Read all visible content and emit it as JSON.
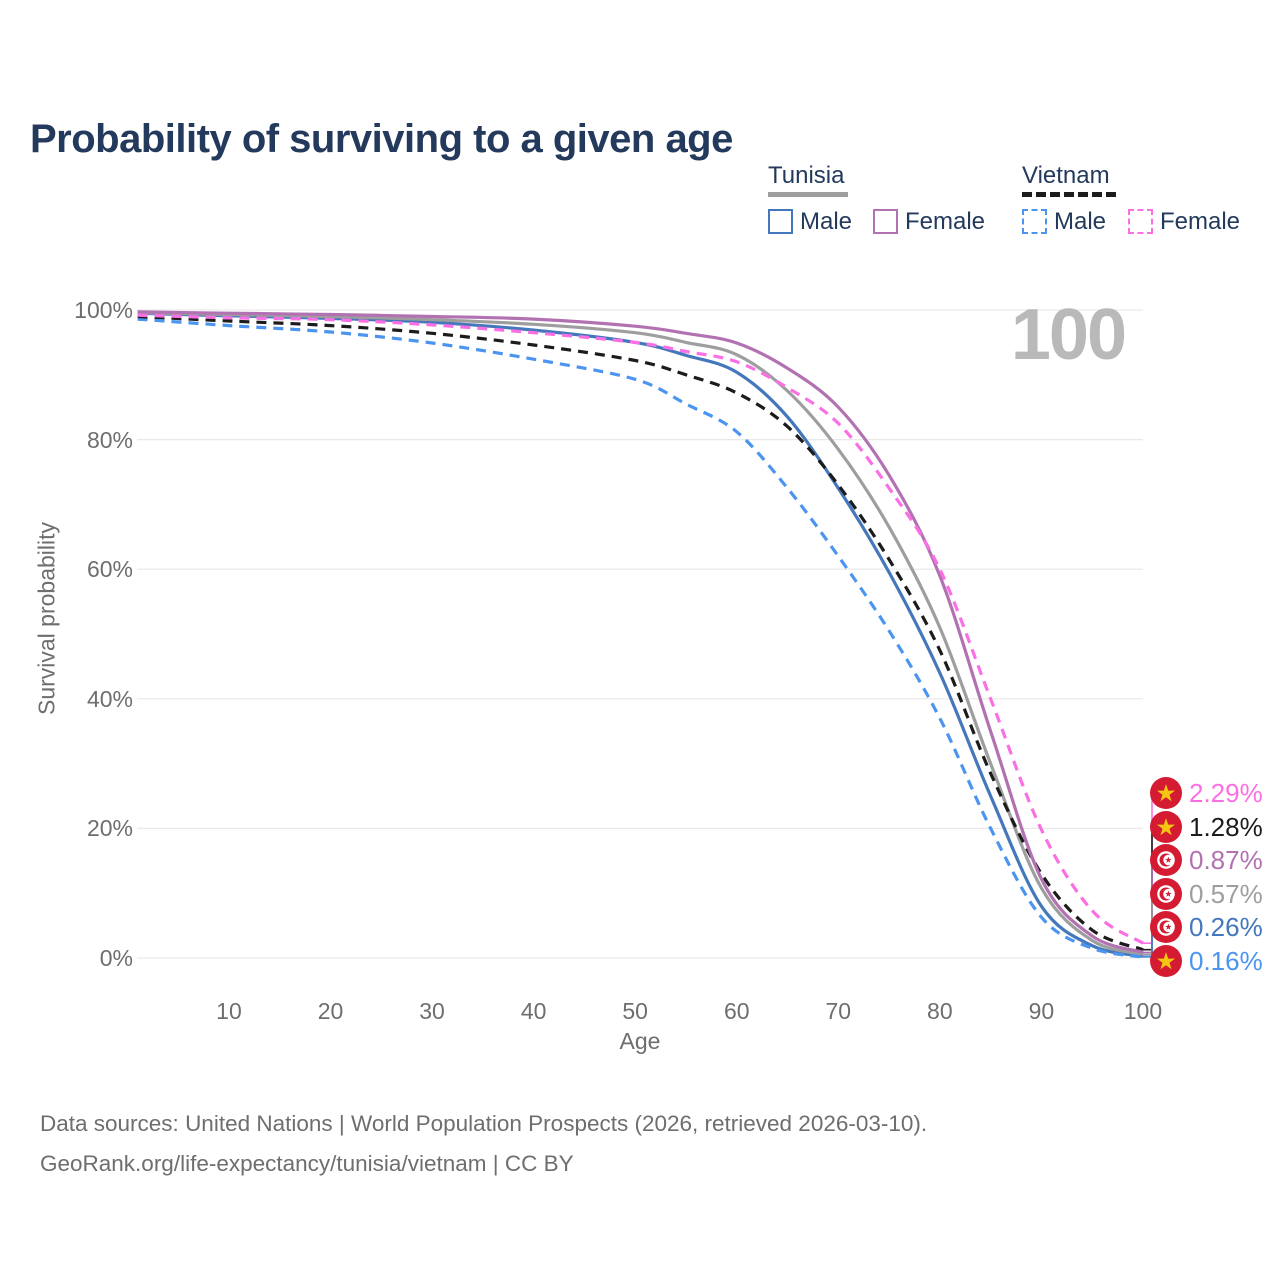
{
  "title": "Probability of surviving to a given age",
  "watermark": "100",
  "axes": {
    "x_title": "Age",
    "y_title": "Survival probability",
    "x_ticks": [
      "10",
      "20",
      "30",
      "40",
      "50",
      "60",
      "70",
      "80",
      "90",
      "100"
    ],
    "y_ticks": [
      "0%",
      "20%",
      "40%",
      "60%",
      "80%",
      "100%"
    ]
  },
  "legend": {
    "groups": [
      {
        "country": "Tunisia",
        "line_style": "solid",
        "line_color": "#9E9E9E",
        "items": [
          {
            "label": "Male",
            "color": "#4477BB",
            "style": "solid"
          },
          {
            "label": "Female",
            "color": "#B272B2",
            "style": "solid"
          }
        ]
      },
      {
        "country": "Vietnam",
        "line_style": "dashed",
        "line_color": "#1C1C1C",
        "items": [
          {
            "label": "Male",
            "color": "#4B94F0",
            "style": "dashed"
          },
          {
            "label": "Female",
            "color": "#FB6FE4",
            "style": "dashed"
          }
        ]
      }
    ]
  },
  "end_labels": [
    {
      "value": "2.29%",
      "flag": "vietnam",
      "color": "#FB6FE4",
      "series": "Vietnam Female"
    },
    {
      "value": "1.28%",
      "flag": "vietnam",
      "color": "#1C1C1C",
      "series": "Vietnam"
    },
    {
      "value": "0.87%",
      "flag": "tunisia",
      "color": "#B272B2",
      "series": "Tunisia Female"
    },
    {
      "value": "0.57%",
      "flag": "tunisia",
      "color": "#9E9E9E",
      "series": "Tunisia"
    },
    {
      "value": "0.26%",
      "flag": "tunisia",
      "color": "#4477BB",
      "series": "Tunisia Male"
    },
    {
      "value": "0.16%",
      "flag": "vietnam",
      "color": "#4B94F0",
      "series": "Vietnam Male"
    }
  ],
  "footer": {
    "line1": "Data sources: United Nations | World Population Prospects (2026, retrieved 2026-03-10).",
    "line2": "GeoRank.org/life-expectancy/tunisia/vietnam | CC BY"
  },
  "chart_data": {
    "type": "line",
    "title": "Probability of surviving to a given age",
    "xlabel": "Age",
    "ylabel": "Survival probability",
    "xlim": [
      0,
      100
    ],
    "ylim": [
      0,
      100
    ],
    "grid": "horizontal",
    "legend_position": "top-right",
    "x": [
      1,
      10,
      20,
      30,
      40,
      50,
      55,
      60,
      65,
      70,
      75,
      80,
      85,
      90,
      95,
      100
    ],
    "series": [
      {
        "name": "Vietnam Female",
        "color": "#FB6FE4",
        "dash": true,
        "values": [
          99.2,
          98.8,
          98.5,
          97.7,
          96.5,
          95.0,
          93.6,
          92.0,
          88.0,
          82.5,
          72.5,
          60.0,
          40.0,
          19.8,
          7.3,
          2.29
        ],
        "end_label": "2.29%"
      },
      {
        "name": "Vietnam",
        "color": "#1C1C1C",
        "dash": true,
        "values": [
          99.0,
          98.3,
          97.6,
          96.4,
          94.6,
          92.2,
          90.0,
          87.2,
          82.0,
          73.0,
          61.5,
          47.5,
          28.5,
          13.0,
          4.3,
          1.28
        ],
        "end_label": "1.28%"
      },
      {
        "name": "Tunisia Female",
        "color": "#B272B2",
        "dash": false,
        "values": [
          99.7,
          99.5,
          99.3,
          99.0,
          98.6,
          97.5,
          96.4,
          94.9,
          91.0,
          85.0,
          74.5,
          59.0,
          35.0,
          12.2,
          3.4,
          0.87
        ],
        "end_label": "0.87%"
      },
      {
        "name": "Tunisia",
        "color": "#9E9E9E",
        "dash": false,
        "values": [
          99.6,
          99.3,
          99.0,
          98.5,
          97.8,
          96.5,
          95.0,
          93.1,
          87.5,
          78.5,
          66.5,
          51.0,
          30.0,
          10.8,
          2.7,
          0.57
        ],
        "end_label": "0.57%"
      },
      {
        "name": "Tunisia Male",
        "color": "#4477BB",
        "dash": false,
        "values": [
          99.5,
          99.1,
          98.7,
          98.1,
          96.9,
          95.0,
          93.0,
          90.4,
          83.5,
          72.5,
          59.5,
          44.0,
          25.0,
          8.0,
          1.9,
          0.26
        ],
        "end_label": "0.26%"
      },
      {
        "name": "Vietnam Male",
        "color": "#4B94F0",
        "dash": true,
        "values": [
          98.6,
          97.6,
          96.6,
          94.9,
          92.4,
          89.3,
          85.5,
          81.2,
          72.5,
          62.0,
          50.5,
          37.0,
          20.0,
          6.3,
          1.5,
          0.16
        ],
        "end_label": "0.16%"
      }
    ]
  }
}
